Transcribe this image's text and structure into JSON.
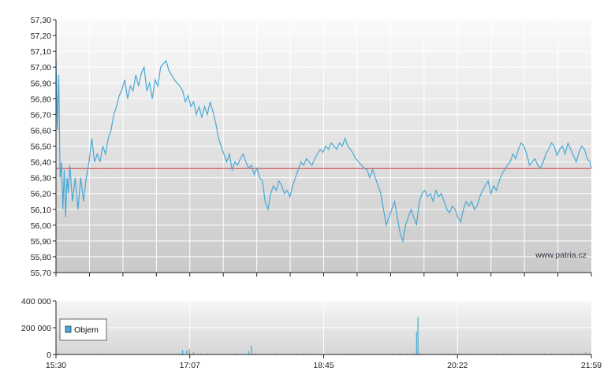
{
  "watermark": "www.patria.cz",
  "colors": {
    "price_line": "#4aa8d4",
    "reference_line": "#d23a3a",
    "volume_bar": "#4aa8d4"
  },
  "chart_data": [
    {
      "type": "line",
      "name": "price",
      "ylim": [
        55.7,
        57.3
      ],
      "y_ticks": [
        "57,30",
        "57,20",
        "57,10",
        "57,00",
        "56,90",
        "56,80",
        "56,70",
        "56,60",
        "56,50",
        "56,40",
        "56,30",
        "56,20",
        "56,10",
        "56,00",
        "55,90",
        "55,80",
        "55,70"
      ],
      "x_ticks": [
        "15:30",
        "17:07",
        "18:45",
        "20:22",
        "21:59"
      ],
      "reference_line": 56.36,
      "x_range_minutes": [
        0,
        389
      ],
      "series": [
        {
          "points": [
            [
              0,
              57.05
            ],
            [
              1,
              56.6
            ],
            [
              2,
              56.95
            ],
            [
              3,
              56.3
            ],
            [
              4,
              56.4
            ],
            [
              5,
              56.1
            ],
            [
              6,
              56.35
            ],
            [
              7,
              56.05
            ],
            [
              8,
              56.3
            ],
            [
              9,
              56.2
            ],
            [
              10,
              56.38
            ],
            [
              12,
              56.15
            ],
            [
              14,
              56.3
            ],
            [
              16,
              56.1
            ],
            [
              18,
              56.3
            ],
            [
              20,
              56.15
            ],
            [
              22,
              56.3
            ],
            [
              24,
              56.4
            ],
            [
              26,
              56.55
            ],
            [
              28,
              56.4
            ],
            [
              30,
              56.45
            ],
            [
              32,
              56.4
            ],
            [
              34,
              56.5
            ],
            [
              36,
              56.45
            ],
            [
              38,
              56.55
            ],
            [
              40,
              56.6
            ],
            [
              42,
              56.7
            ],
            [
              44,
              56.75
            ],
            [
              46,
              56.82
            ],
            [
              48,
              56.86
            ],
            [
              50,
              56.92
            ],
            [
              52,
              56.8
            ],
            [
              54,
              56.88
            ],
            [
              56,
              56.85
            ],
            [
              58,
              56.95
            ],
            [
              60,
              56.88
            ],
            [
              62,
              56.96
            ],
            [
              64,
              57.0
            ],
            [
              66,
              56.85
            ],
            [
              68,
              56.9
            ],
            [
              70,
              56.8
            ],
            [
              72,
              56.92
            ],
            [
              74,
              56.88
            ],
            [
              76,
              57.0
            ],
            [
              78,
              57.02
            ],
            [
              80,
              57.04
            ],
            [
              82,
              56.98
            ],
            [
              84,
              56.95
            ],
            [
              86,
              56.92
            ],
            [
              88,
              56.9
            ],
            [
              90,
              56.88
            ],
            [
              92,
              56.85
            ],
            [
              94,
              56.78
            ],
            [
              96,
              56.82
            ],
            [
              98,
              56.75
            ],
            [
              100,
              56.78
            ],
            [
              102,
              56.7
            ],
            [
              104,
              56.75
            ],
            [
              106,
              56.68
            ],
            [
              108,
              56.75
            ],
            [
              110,
              56.7
            ],
            [
              112,
              56.78
            ],
            [
              114,
              56.72
            ],
            [
              116,
              56.65
            ],
            [
              118,
              56.55
            ],
            [
              120,
              56.5
            ],
            [
              122,
              56.45
            ],
            [
              124,
              56.4
            ],
            [
              126,
              56.45
            ],
            [
              128,
              56.35
            ],
            [
              130,
              56.4
            ],
            [
              132,
              56.38
            ],
            [
              134,
              56.42
            ],
            [
              136,
              56.45
            ],
            [
              138,
              56.4
            ],
            [
              140,
              56.36
            ],
            [
              142,
              56.38
            ],
            [
              144,
              56.32
            ],
            [
              146,
              56.36
            ],
            [
              148,
              56.3
            ],
            [
              150,
              56.28
            ],
            [
              152,
              56.15
            ],
            [
              154,
              56.1
            ],
            [
              156,
              56.2
            ],
            [
              158,
              56.25
            ],
            [
              160,
              56.22
            ],
            [
              162,
              56.28
            ],
            [
              164,
              56.25
            ],
            [
              166,
              56.2
            ],
            [
              168,
              56.22
            ],
            [
              170,
              56.18
            ],
            [
              172,
              56.25
            ],
            [
              174,
              56.3
            ],
            [
              176,
              56.35
            ],
            [
              178,
              56.4
            ],
            [
              180,
              56.38
            ],
            [
              182,
              56.42
            ],
            [
              184,
              56.4
            ],
            [
              186,
              56.38
            ],
            [
              188,
              56.42
            ],
            [
              190,
              56.45
            ],
            [
              192,
              56.48
            ],
            [
              194,
              56.46
            ],
            [
              196,
              56.5
            ],
            [
              198,
              56.48
            ],
            [
              200,
              56.52
            ],
            [
              202,
              56.5
            ],
            [
              204,
              56.48
            ],
            [
              206,
              56.52
            ],
            [
              208,
              56.5
            ],
            [
              210,
              56.55
            ],
            [
              212,
              56.5
            ],
            [
              214,
              56.48
            ],
            [
              216,
              56.45
            ],
            [
              218,
              56.42
            ],
            [
              220,
              56.4
            ],
            [
              222,
              56.38
            ],
            [
              224,
              56.36
            ],
            [
              226,
              56.35
            ],
            [
              228,
              56.3
            ],
            [
              230,
              56.35
            ],
            [
              232,
              56.3
            ],
            [
              234,
              56.25
            ],
            [
              236,
              56.2
            ],
            [
              238,
              56.1
            ],
            [
              240,
              56.0
            ],
            [
              242,
              56.05
            ],
            [
              244,
              56.1
            ],
            [
              246,
              56.15
            ],
            [
              248,
              56.05
            ],
            [
              250,
              55.95
            ],
            [
              252,
              55.9
            ],
            [
              254,
              56.0
            ],
            [
              256,
              56.05
            ],
            [
              258,
              56.1
            ],
            [
              260,
              56.05
            ],
            [
              262,
              56.0
            ],
            [
              264,
              56.15
            ],
            [
              266,
              56.2
            ],
            [
              268,
              56.22
            ],
            [
              270,
              56.18
            ],
            [
              272,
              56.2
            ],
            [
              274,
              56.15
            ],
            [
              276,
              56.22
            ],
            [
              278,
              56.18
            ],
            [
              280,
              56.2
            ],
            [
              282,
              56.15
            ],
            [
              284,
              56.1
            ],
            [
              286,
              56.08
            ],
            [
              288,
              56.12
            ],
            [
              290,
              56.1
            ],
            [
              292,
              56.05
            ],
            [
              294,
              56.02
            ],
            [
              296,
              56.1
            ],
            [
              298,
              56.15
            ],
            [
              300,
              56.12
            ],
            [
              302,
              56.15
            ],
            [
              304,
              56.1
            ],
            [
              306,
              56.12
            ],
            [
              308,
              56.18
            ],
            [
              310,
              56.22
            ],
            [
              312,
              56.25
            ],
            [
              314,
              56.28
            ],
            [
              316,
              56.2
            ],
            [
              318,
              56.25
            ],
            [
              320,
              56.22
            ],
            [
              322,
              56.28
            ],
            [
              324,
              56.32
            ],
            [
              326,
              56.35
            ],
            [
              328,
              56.38
            ],
            [
              330,
              56.4
            ],
            [
              332,
              56.45
            ],
            [
              334,
              56.42
            ],
            [
              336,
              56.48
            ],
            [
              338,
              56.52
            ],
            [
              340,
              56.5
            ],
            [
              342,
              56.45
            ],
            [
              344,
              56.38
            ],
            [
              346,
              56.4
            ],
            [
              348,
              56.42
            ],
            [
              350,
              56.38
            ],
            [
              352,
              56.36
            ],
            [
              354,
              56.4
            ],
            [
              356,
              56.45
            ],
            [
              358,
              56.48
            ],
            [
              360,
              56.52
            ],
            [
              362,
              56.5
            ],
            [
              364,
              56.44
            ],
            [
              366,
              56.48
            ],
            [
              368,
              56.5
            ],
            [
              370,
              56.45
            ],
            [
              372,
              56.52
            ],
            [
              374,
              56.48
            ],
            [
              376,
              56.44
            ],
            [
              378,
              56.4
            ],
            [
              380,
              56.46
            ],
            [
              382,
              56.5
            ],
            [
              384,
              56.48
            ],
            [
              386,
              56.42
            ],
            [
              388,
              56.4
            ],
            [
              389,
              56.36
            ]
          ]
        }
      ]
    },
    {
      "type": "bar",
      "name": "volume",
      "ylim": [
        0,
        400000
      ],
      "y_ticks": [
        "400 000",
        "200 000",
        "0"
      ],
      "x_ticks": [
        "15:30",
        "17:07",
        "18:45",
        "20:22",
        "21:59"
      ],
      "legend": {
        "label": "Objem",
        "placement": "left"
      },
      "series": [
        {
          "points": [
            [
              2,
              8000
            ],
            [
              8,
              5000
            ],
            [
              15,
              6000
            ],
            [
              22,
              4000
            ],
            [
              30,
              7000
            ],
            [
              38,
              5000
            ],
            [
              45,
              6000
            ],
            [
              52,
              4500
            ],
            [
              60,
              5500
            ],
            [
              68,
              4000
            ],
            [
              75,
              6000
            ],
            [
              82,
              5000
            ],
            [
              90,
              7000
            ],
            [
              92,
              35000
            ],
            [
              95,
              28000
            ],
            [
              97,
              40000
            ],
            [
              100,
              15000
            ],
            [
              105,
              6000
            ],
            [
              110,
              9000
            ],
            [
              115,
              5000
            ],
            [
              120,
              6000
            ],
            [
              125,
              4000
            ],
            [
              130,
              8000
            ],
            [
              140,
              25000
            ],
            [
              142,
              65000
            ],
            [
              145,
              10000
            ],
            [
              150,
              5000
            ],
            [
              155,
              6000
            ],
            [
              160,
              7000
            ],
            [
              165,
              5000
            ],
            [
              170,
              6000
            ],
            [
              175,
              4500
            ],
            [
              180,
              8000
            ],
            [
              185,
              5000
            ],
            [
              190,
              6000
            ],
            [
              195,
              4000
            ],
            [
              200,
              5500
            ],
            [
              210,
              6000
            ],
            [
              215,
              5000
            ],
            [
              220,
              7000
            ],
            [
              225,
              5000
            ],
            [
              230,
              6000
            ],
            [
              235,
              5000
            ],
            [
              240,
              6000
            ],
            [
              245,
              8000
            ],
            [
              250,
              7000
            ],
            [
              255,
              5000
            ],
            [
              260,
              9000
            ],
            [
              262,
              170000
            ],
            [
              263,
              280000
            ],
            [
              264,
              12000
            ],
            [
              270,
              6000
            ],
            [
              275,
              5000
            ],
            [
              280,
              8000
            ],
            [
              285,
              5000
            ],
            [
              290,
              6000
            ],
            [
              295,
              5000
            ],
            [
              300,
              7000
            ],
            [
              305,
              5000
            ],
            [
              310,
              6000
            ],
            [
              315,
              5000
            ],
            [
              320,
              6000
            ],
            [
              325,
              5000
            ],
            [
              330,
              7000
            ],
            [
              335,
              5000
            ],
            [
              340,
              6000
            ],
            [
              345,
              5000
            ],
            [
              350,
              6000
            ],
            [
              355,
              7000
            ],
            [
              360,
              5000
            ],
            [
              365,
              6000
            ],
            [
              370,
              5000
            ],
            [
              375,
              8000
            ],
            [
              380,
              7000
            ],
            [
              385,
              15000
            ],
            [
              388,
              9000
            ]
          ]
        }
      ]
    }
  ]
}
